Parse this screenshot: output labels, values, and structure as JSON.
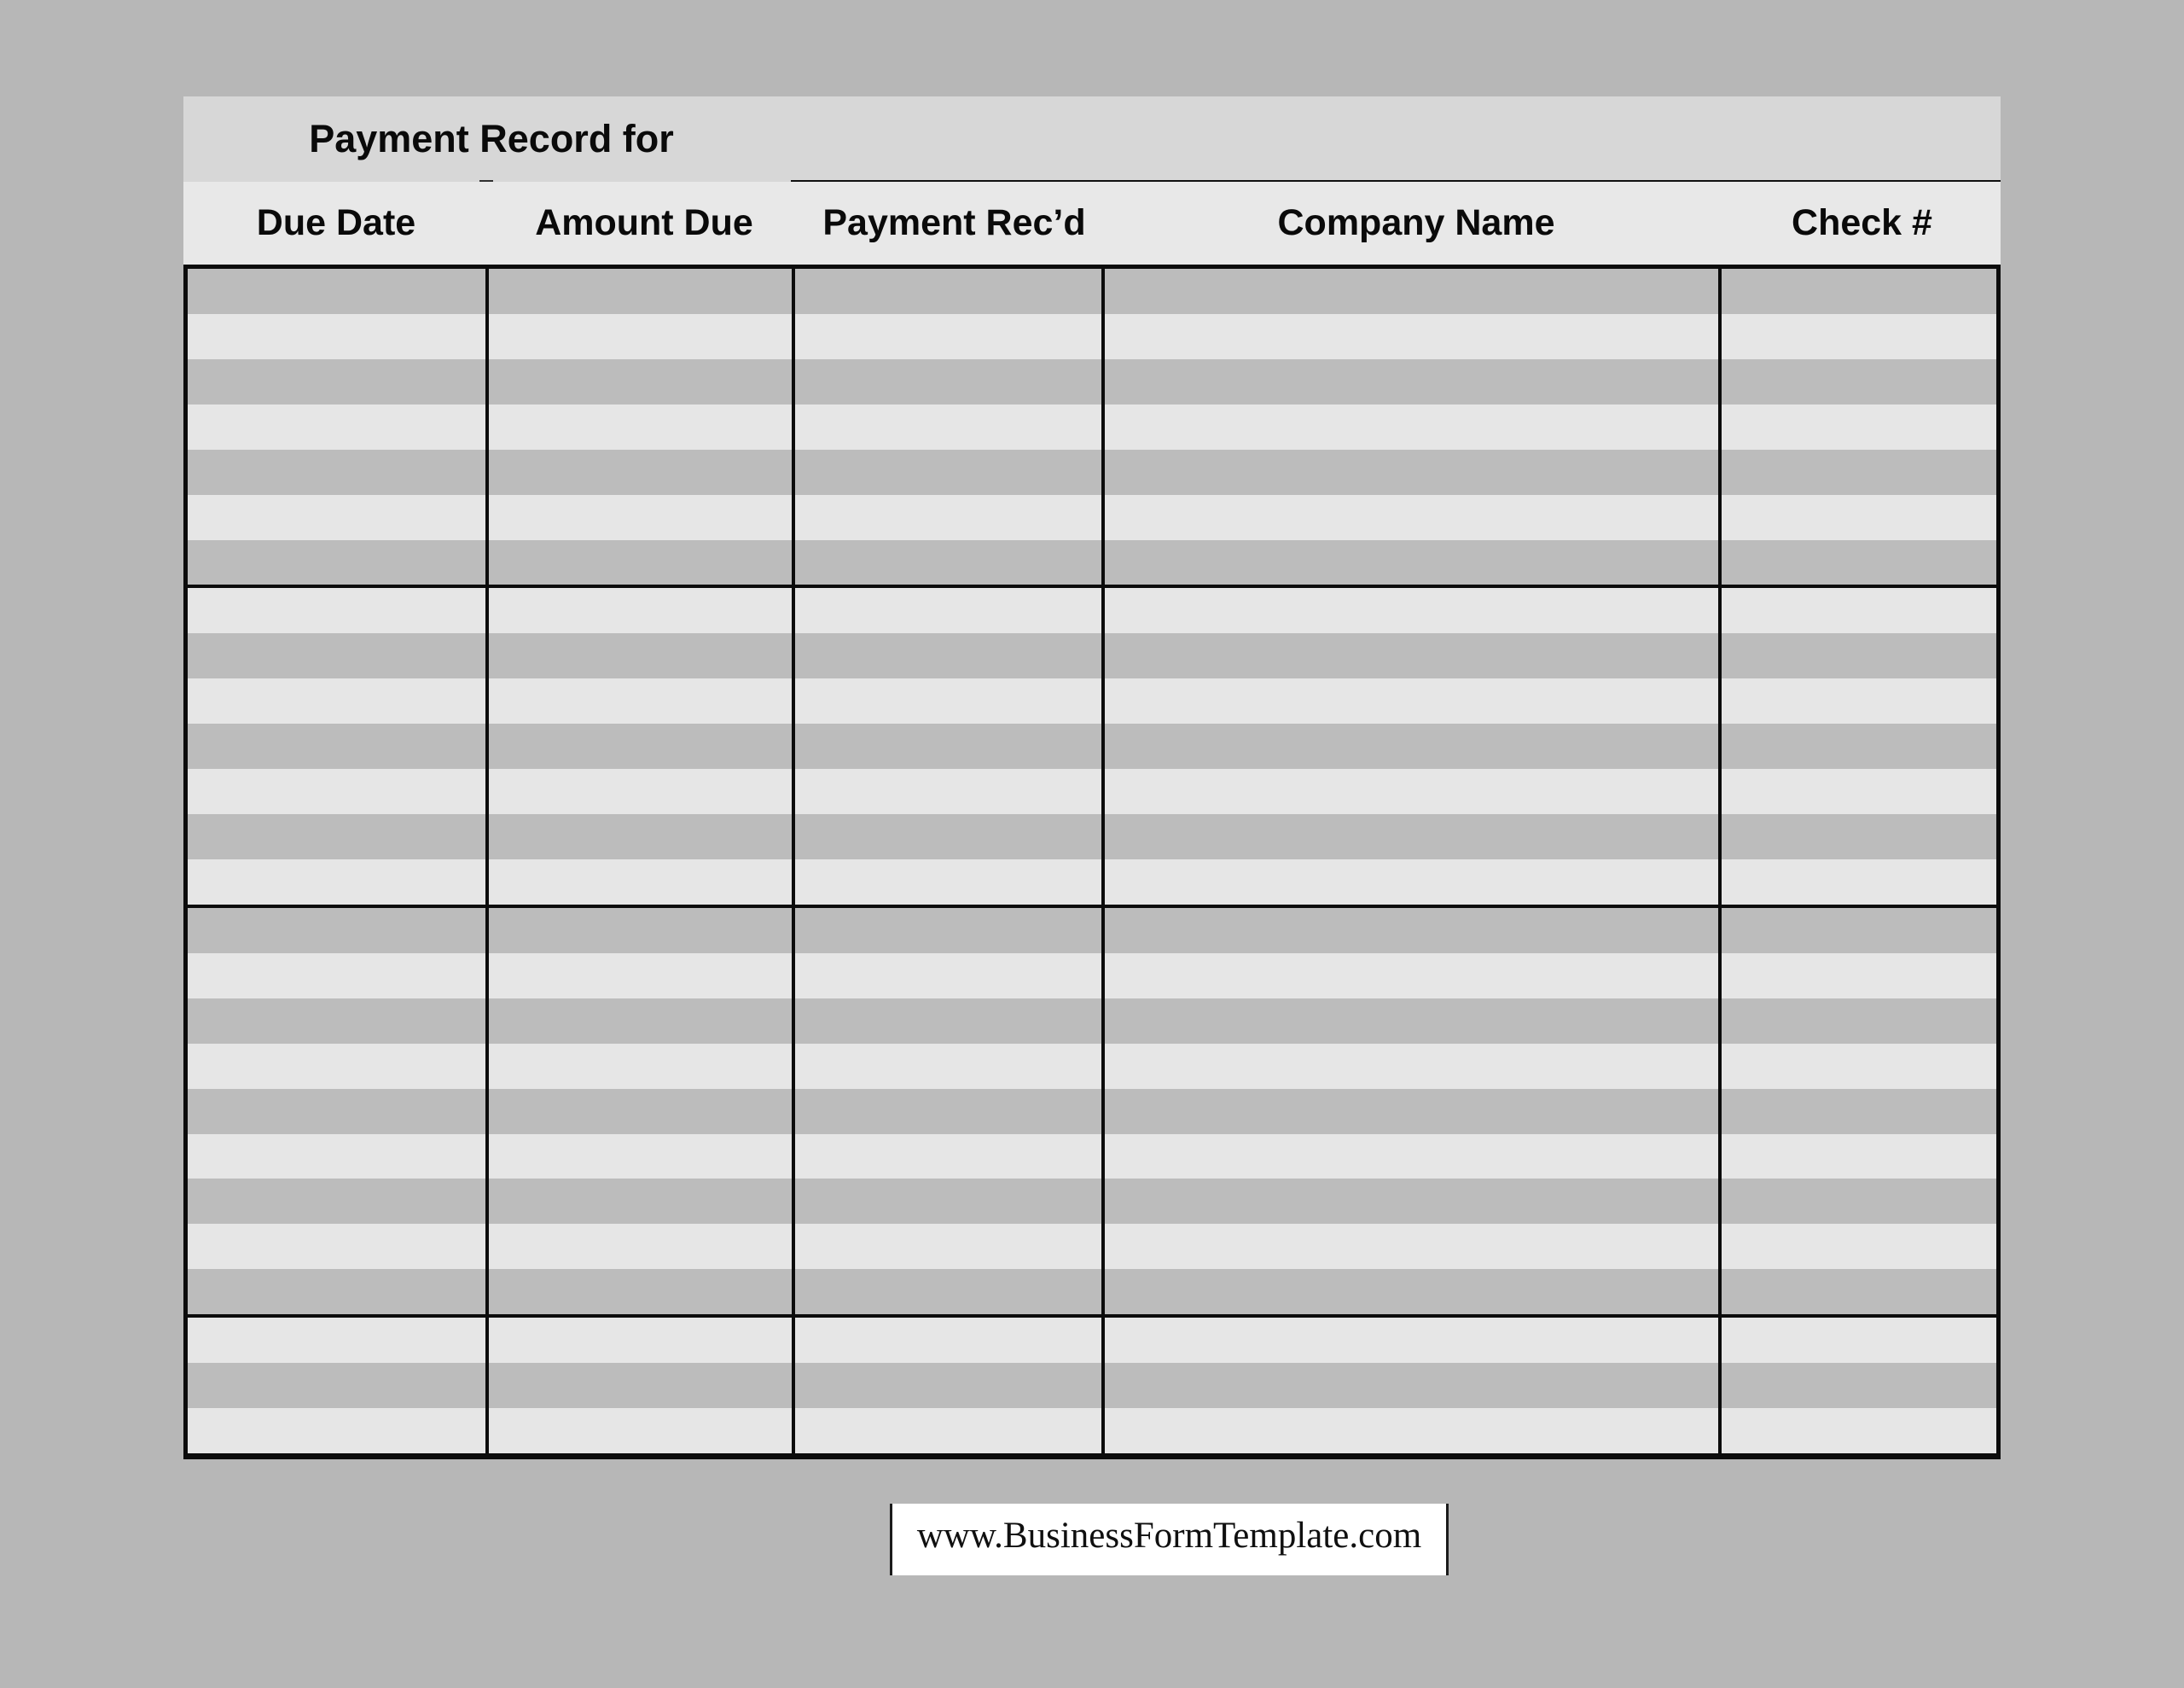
{
  "page": {
    "background_color": "#b7b7b7"
  },
  "payment_record_form": {
    "title": "Payment Record for",
    "column_headers": [
      "Due Date",
      "Amount Due",
      "Payment Rec’d",
      "Company Name",
      "Check #"
    ],
    "body": {
      "row_count": 26,
      "first_row_shade": "dark",
      "group_separators_after_rows": [
        7,
        14,
        23
      ],
      "rows_are_empty": true
    },
    "colors": {
      "title_band": "#d7d7d7",
      "header_band": "#e8e8e8",
      "row_dark": "#bcbcbc",
      "row_light": "#e6e6e6",
      "grid_line": "#0c0c0c"
    }
  },
  "footer": {
    "website_label": "www.BusinessFormTemplate.com"
  }
}
